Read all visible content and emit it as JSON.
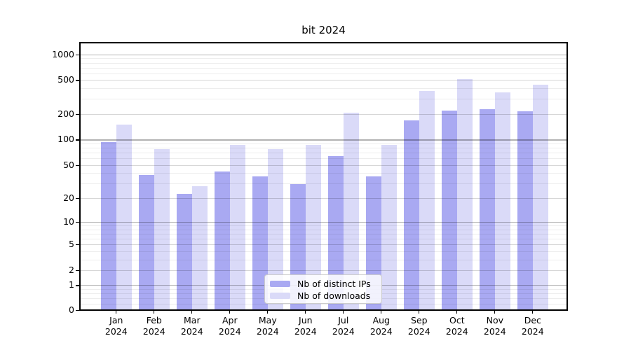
{
  "title": "bit 2024",
  "chart_data": {
    "type": "bar",
    "title": "bit 2024",
    "xlabel": "",
    "ylabel": "",
    "categories": [
      "Jan",
      "Feb",
      "Mar",
      "Apr",
      "May",
      "Jun",
      "Jul",
      "Aug",
      "Sep",
      "Oct",
      "Nov",
      "Dec"
    ],
    "year_label": "2024",
    "series": [
      {
        "name": "Nb of distinct IPs",
        "color": "#a9a9f2",
        "values": [
          92,
          37,
          22,
          41,
          36,
          29,
          62,
          36,
          165,
          215,
          225,
          212
        ]
      },
      {
        "name": "Nb of downloads",
        "color": "#dadaf8",
        "values": [
          147,
          76,
          27,
          84,
          76,
          84,
          204,
          85,
          365,
          500,
          350,
          435
        ]
      }
    ],
    "y_scale": "log10(value+1)",
    "y_ticks": [
      0,
      1,
      2,
      5,
      10,
      20,
      50,
      100,
      200,
      500,
      1000
    ],
    "y_decade_ticks": [
      1,
      10,
      100,
      1000
    ],
    "y_minor_ticks": [
      0.2,
      0.4,
      0.6,
      0.8,
      3,
      4,
      6,
      7,
      8,
      9,
      30,
      40,
      60,
      70,
      80,
      90,
      300,
      400,
      600,
      700,
      800,
      900
    ],
    "ylim": [
      0,
      1400
    ],
    "grid": true,
    "legend_position": "lower center inside"
  }
}
